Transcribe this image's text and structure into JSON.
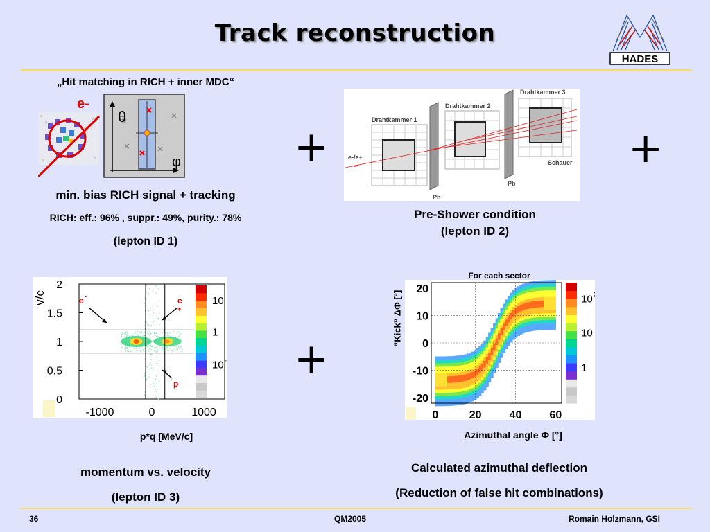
{
  "slide": {
    "title": "Track reconstruction",
    "logo_text": "HADES",
    "plus": "+"
  },
  "rich": {
    "heading": "„Hit matching in RICH + inner MDC“",
    "electron_label": "e-",
    "theta": "θ",
    "phi": "φ",
    "caption1": "min. bias RICH signal + tracking",
    "caption2": "RICH: eff.: 96% , suppr.: 49%, purity.: 78%",
    "caption3": "(lepton ID 1)"
  },
  "shower": {
    "chamber1": "Drahtkammer 1",
    "chamber2": "Drahtkammer 2",
    "chamber3": "Drahtkammer 3",
    "schauer": "Schauer",
    "pb": "Pb",
    "beam": "e-/e+",
    "caption1": "Pre-Shower condition",
    "caption2": "(lepton ID 2)"
  },
  "momentum_plot": {
    "caption1": "momentum vs. velocity",
    "caption2": "(lepton ID 3)",
    "electron": "e",
    "electron_sup": "-",
    "positron": "e",
    "positron_sup": "+",
    "proton": "p"
  },
  "kick_plot": {
    "top_label": "For each sector",
    "caption1": "Calculated azimuthal deflection",
    "caption2": "(Reduction of false hit combinations)"
  },
  "chart_data": [
    {
      "type": "heatmap",
      "title": "",
      "xlabel": "p*q [MeV/c]",
      "ylabel": "v/c",
      "xlim": [
        -1400,
        1400
      ],
      "ylim": [
        0,
        2
      ],
      "x_ticks": [
        "-1000",
        "0",
        "1000"
      ],
      "y_ticks": [
        "0",
        "0.5",
        "1",
        "1.5",
        "2"
      ],
      "colorbar_ticks": [
        "10",
        "1",
        "10"
      ],
      "colorbar_exponents": [
        "",
        "",
        "-1"
      ],
      "cut_lines_y": [
        0.8,
        1.2
      ],
      "cut_lines_x": [
        -120,
        250
      ]
    },
    {
      "type": "heatmap",
      "title": "For each sector",
      "xlabel": "Azimuthal angle Φ [°]",
      "ylabel": "”Kick” ΔΦ [°]",
      "xlim": [
        -2,
        63
      ],
      "ylim": [
        -22,
        22
      ],
      "x_ticks": [
        "0",
        "20",
        "40",
        "60"
      ],
      "y_ticks": [
        "20",
        "10",
        "0",
        "-10",
        "-20"
      ],
      "colorbar_ticks": [
        "10",
        "10",
        "1"
      ],
      "colorbar_exponents": [
        "2",
        "",
        ""
      ]
    }
  ],
  "footer": {
    "page": "36",
    "conference": "QM2005",
    "author": "Romain Holzmann, GSI"
  }
}
